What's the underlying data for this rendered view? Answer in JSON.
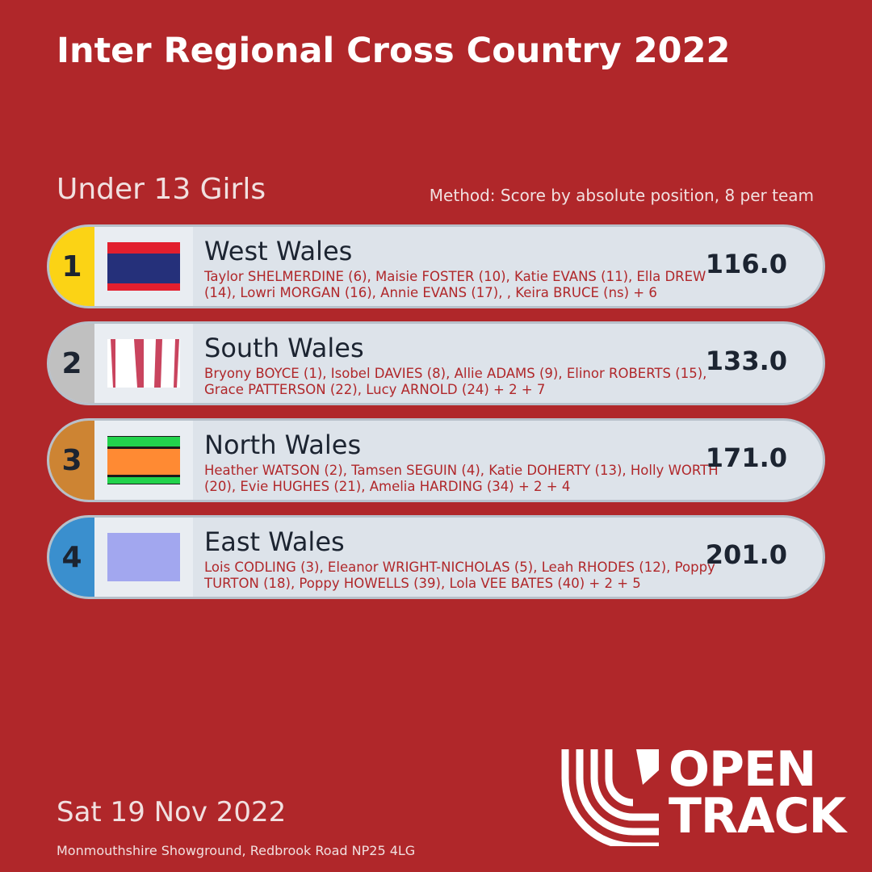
{
  "header": {
    "title": "Inter Regional Cross Country 2022",
    "category": "Under 13 Girls",
    "method": "Method: Score by absolute position, 8 per team"
  },
  "teams": [
    {
      "rank": "1",
      "name": "West Wales",
      "members": "Taylor SHELMERDINE (6), Maisie FOSTER (10), Katie EVANS (11), Ella DREW (14), Lowri MORGAN (16), Annie EVANS (17), , Keira BRUCE (ns) + 6",
      "score": "116.0",
      "rank_color": "#fbd315",
      "flag": {
        "type": "stripes",
        "colors": [
          "#e21f2e",
          "#25307a",
          "#e21f2e"
        ]
      }
    },
    {
      "rank": "2",
      "name": "South Wales",
      "members": "Bryony BOYCE (1), Isobel DAVIES (8), Allie ADAMS (9), Elinor ROBERTS (15), Grace PATTERSON (22), Lucy ARNOLD (24) + 2 + 7",
      "score": "133.0",
      "rank_color": "#c0c0c0",
      "flag": {
        "type": "vstripes",
        "colors": [
          "#ffffff",
          "#c9445e"
        ]
      }
    },
    {
      "rank": "3",
      "name": "North Wales",
      "members": "Heather WATSON (2), Tamsen SEGUIN (4), Katie DOHERTY (13), Holly WORTH (20), Evie HUGHES (21), Amelia HARDING (34) + 2 + 4",
      "score": "171.0",
      "rank_color": "#cd8433",
      "flag": {
        "type": "stripes3",
        "colors": [
          "#22d24c",
          "#ff8a33",
          "#22d24c"
        ]
      }
    },
    {
      "rank": "4",
      "name": "East Wales",
      "members": "Lois CODLING (3), Eleanor WRIGHT-NICHOLAS (5), Leah RHODES (12), Poppy TURTON (18), Poppy HOWELLS (39), Lola VEE BATES (40) + 2 + 5",
      "score": "201.0",
      "rank_color": "#3a8fce",
      "flag": {
        "type": "solid",
        "colors": [
          "#a2a7ef"
        ]
      }
    }
  ],
  "footer": {
    "date": "Sat 19 Nov 2022",
    "venue": "Monmouthshire Showground, Redbrook Road NP25 4LG",
    "logo_line1": "OPEN",
    "logo_line2": "TRACK"
  },
  "colors": {
    "background": "#b0272a",
    "card": "#dde3ea"
  }
}
